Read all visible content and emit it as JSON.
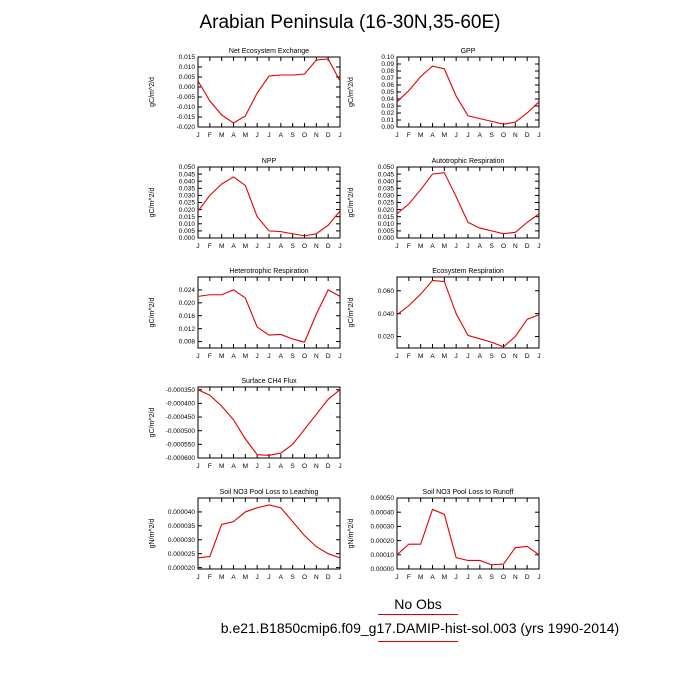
{
  "title": "Arabian Peninsula (16-30N,35-60E)",
  "legend": {
    "label": "No Obs",
    "color": "#e00000"
  },
  "case_label": "b.e21.B1850cmip6.f09_g17.DAMIP-hist-sol.003 (yrs 1990-2014)",
  "chart_data": [
    {
      "type": "line",
      "title": "Net Ecosystem Exchange",
      "ylabel": "gC/m^2/d",
      "categories": [
        "J",
        "F",
        "M",
        "A",
        "M",
        "J",
        "J",
        "A",
        "S",
        "O",
        "N",
        "D",
        "J"
      ],
      "ylim": [
        -0.02,
        0.015
      ],
      "yticks": [
        -0.02,
        -0.015,
        -0.01,
        -0.005,
        0,
        0.005,
        0.01,
        0.015
      ],
      "ytick_labels": [
        "-0.020",
        "-0.015",
        "-0.010",
        "-0.005",
        "0.000",
        "0.005",
        "0.010",
        "0.015"
      ],
      "series": [
        {
          "values": [
            0.003,
            -0.007,
            -0.014,
            -0.018,
            -0.0145,
            -0.003,
            0.0055,
            0.006,
            0.006,
            0.0065,
            0.0135,
            0.014,
            0.003
          ]
        }
      ]
    },
    {
      "type": "line",
      "title": "GPP",
      "ylabel": "gC/m^2/d",
      "categories": [
        "J",
        "F",
        "M",
        "A",
        "M",
        "J",
        "J",
        "A",
        "S",
        "O",
        "N",
        "D",
        "J"
      ],
      "ylim": [
        0,
        0.1
      ],
      "yticks": [
        0,
        0.01,
        0.02,
        0.03,
        0.04,
        0.05,
        0.06,
        0.07,
        0.08,
        0.09,
        0.1
      ],
      "ytick_labels": [
        "0.00",
        "0.01",
        "0.02",
        "0.03",
        "0.04",
        "0.05",
        "0.06",
        "0.07",
        "0.08",
        "0.09",
        "0.10"
      ],
      "series": [
        {
          "values": [
            0.036,
            0.052,
            0.072,
            0.087,
            0.083,
            0.044,
            0.016,
            0.012,
            0.008,
            0.004,
            0.007,
            0.02,
            0.036
          ]
        }
      ]
    },
    {
      "type": "line",
      "title": "NPP",
      "ylabel": "gC/m^2/d",
      "categories": [
        "J",
        "F",
        "M",
        "A",
        "M",
        "J",
        "J",
        "A",
        "S",
        "O",
        "N",
        "D",
        "J"
      ],
      "ylim": [
        0,
        0.05
      ],
      "yticks": [
        0,
        0.005,
        0.01,
        0.015,
        0.02,
        0.025,
        0.03,
        0.035,
        0.04,
        0.045,
        0.05
      ],
      "ytick_labels": [
        "0.000",
        "0.005",
        "0.010",
        "0.015",
        "0.020",
        "0.025",
        "0.030",
        "0.035",
        "0.040",
        "0.045",
        "0.050"
      ],
      "series": [
        {
          "values": [
            0.019,
            0.03,
            0.038,
            0.043,
            0.037,
            0.015,
            0.005,
            0.0045,
            0.003,
            0.0015,
            0.003,
            0.009,
            0.019
          ]
        }
      ]
    },
    {
      "type": "line",
      "title": "Autotrophic Respiration",
      "ylabel": "gC/m^2/d",
      "categories": [
        "J",
        "F",
        "M",
        "A",
        "M",
        "J",
        "J",
        "A",
        "S",
        "O",
        "N",
        "D",
        "J"
      ],
      "ylim": [
        0,
        0.05
      ],
      "yticks": [
        0,
        0.005,
        0.01,
        0.015,
        0.02,
        0.025,
        0.03,
        0.035,
        0.04,
        0.045,
        0.05
      ],
      "ytick_labels": [
        "0.000",
        "0.005",
        "0.010",
        "0.015",
        "0.020",
        "0.025",
        "0.030",
        "0.035",
        "0.040",
        "0.045",
        "0.050"
      ],
      "series": [
        {
          "values": [
            0.017,
            0.024,
            0.034,
            0.045,
            0.046,
            0.029,
            0.011,
            0.007,
            0.005,
            0.003,
            0.004,
            0.011,
            0.017
          ]
        }
      ]
    },
    {
      "type": "line",
      "title": "Heterotrophic Respiration",
      "ylabel": "gC/m^2/d",
      "categories": [
        "J",
        "F",
        "M",
        "A",
        "M",
        "J",
        "J",
        "A",
        "S",
        "O",
        "N",
        "D",
        "J"
      ],
      "ylim": [
        0.006,
        0.028
      ],
      "yticks": [
        0.008,
        0.012,
        0.016,
        0.02,
        0.024
      ],
      "ytick_labels": [
        "0.008",
        "0.012",
        "0.016",
        "0.020",
        "0.024"
      ],
      "series": [
        {
          "values": [
            0.022,
            0.0225,
            0.0225,
            0.024,
            0.0215,
            0.0125,
            0.01,
            0.0102,
            0.0088,
            0.0078,
            0.0165,
            0.024,
            0.022
          ]
        }
      ]
    },
    {
      "type": "line",
      "title": "Ecosystem Respiration",
      "ylabel": "gC/m^2/d",
      "categories": [
        "J",
        "F",
        "M",
        "A",
        "M",
        "J",
        "J",
        "A",
        "S",
        "O",
        "N",
        "D",
        "J"
      ],
      "ylim": [
        0.01,
        0.072
      ],
      "yticks": [
        0.02,
        0.04,
        0.06
      ],
      "ytick_labels": [
        "0.020",
        "0.040",
        "0.060"
      ],
      "series": [
        {
          "values": [
            0.039,
            0.047,
            0.057,
            0.069,
            0.068,
            0.04,
            0.021,
            0.018,
            0.015,
            0.011,
            0.02,
            0.035,
            0.039
          ]
        }
      ]
    },
    {
      "type": "line",
      "title": "Surface CH4 Flux",
      "ylabel": "gC/m^2/d",
      "categories": [
        "J",
        "F",
        "M",
        "A",
        "M",
        "J",
        "J",
        "A",
        "S",
        "O",
        "N",
        "D",
        "J"
      ],
      "ylim": [
        -0.0006,
        -0.00034
      ],
      "yticks": [
        -0.0006,
        -0.00055,
        -0.0005,
        -0.00045,
        -0.0004,
        -0.00035
      ],
      "ytick_labels": [
        "-0.000600",
        "-0.000550",
        "-0.000500",
        "-0.000450",
        "-0.000400",
        "-0.000350"
      ],
      "series": [
        {
          "values": [
            -0.00035,
            -0.00037,
            -0.00041,
            -0.00046,
            -0.00053,
            -0.000588,
            -0.00059,
            -0.000582,
            -0.00055,
            -0.000495,
            -0.00044,
            -0.000385,
            -0.00035
          ]
        }
      ]
    },
    {
      "type": "line",
      "title": "Soil NO3 Pool Loss to Leaching",
      "ylabel": "gN/m^2/d",
      "categories": [
        "J",
        "F",
        "M",
        "A",
        "M",
        "J",
        "J",
        "A",
        "S",
        "O",
        "N",
        "D",
        "J"
      ],
      "ylim": [
        1.95e-05,
        4.5e-05
      ],
      "yticks": [
        2e-05,
        2.5e-05,
        3e-05,
        3.5e-05,
        4e-05
      ],
      "ytick_labels": [
        "0.000020",
        "0.000025",
        "0.000030",
        "0.000035",
        "0.000040"
      ],
      "series": [
        {
          "values": [
            2.35e-05,
            2.4e-05,
            3.55e-05,
            3.65e-05,
            4e-05,
            4.15e-05,
            4.25e-05,
            4.15e-05,
            3.65e-05,
            3.15e-05,
            2.75e-05,
            2.5e-05,
            2.35e-05
          ]
        }
      ]
    },
    {
      "type": "line",
      "title": "Soil NO3 Pool Loss to Runoff",
      "ylabel": "gN/m^2/d",
      "categories": [
        "J",
        "F",
        "M",
        "A",
        "M",
        "J",
        "J",
        "A",
        "S",
        "O",
        "N",
        "D",
        "J"
      ],
      "ylim": [
        0,
        0.0005
      ],
      "yticks": [
        0,
        0.0001,
        0.0002,
        0.0003,
        0.0004,
        0.0005
      ],
      "ytick_labels": [
        "0.00000",
        "0.00010",
        "0.00020",
        "0.00030",
        "0.00040",
        "0.00050"
      ],
      "series": [
        {
          "values": [
            0.0001,
            0.000175,
            0.000175,
            0.00042,
            0.000385,
            8e-05,
            6e-05,
            6e-05,
            3e-05,
            3.5e-05,
            0.00015,
            0.00016,
            0.0001
          ]
        }
      ]
    }
  ]
}
